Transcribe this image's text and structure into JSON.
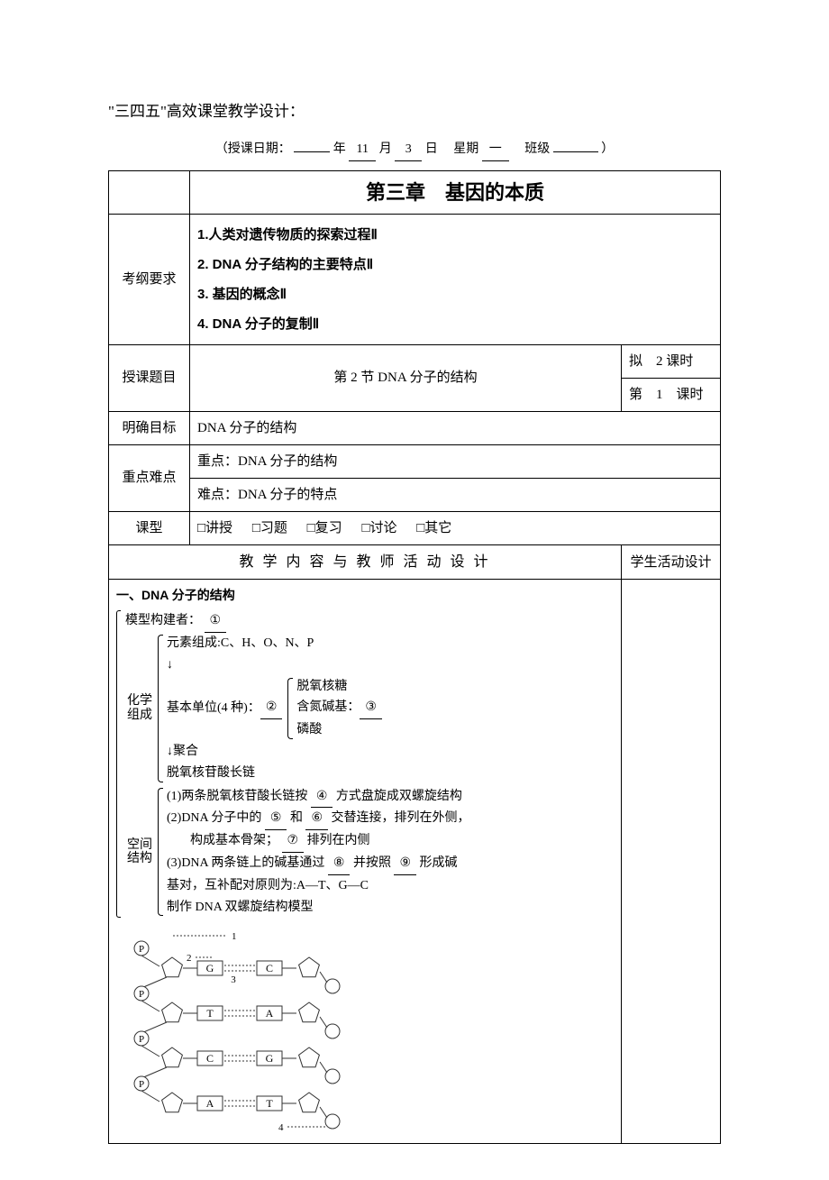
{
  "header": {
    "title": "\"三四五\"高效课堂教学设计：",
    "date_prefix": "（授课日期：",
    "year_blank": "",
    "year_suffix": "年",
    "month_value": "11",
    "month_suffix": "月",
    "day_value": "3",
    "day_suffix": "日",
    "weekday_label": "星期",
    "weekday_value": "一",
    "class_label": "班级",
    "class_value": "",
    "close": "）"
  },
  "chapter_title": "第三章　基因的本质",
  "rows": {
    "syllabus_label": "考纲要求",
    "syllabus_items": {
      "l1": "1.人类对遗传物质的探索过程Ⅱ",
      "l2": "2. DNA 分子结构的主要特点Ⅱ",
      "l3": "3. 基因的概念Ⅱ",
      "l4": "4. DNA 分子的复制Ⅱ"
    },
    "topic_label": "授课题目",
    "topic_value": "第 2 节 DNA 分子的结构",
    "plan_label": "拟　2 课时",
    "period_label": "第　1　课时",
    "goal_label": "明确目标",
    "goal_value": "DNA 分子的结构",
    "difficulty_label": "重点难点",
    "difficulty_key": "重点：DNA 分子的结构",
    "difficulty_hard": "难点：DNA 分子的特点",
    "type_label": "课型",
    "type_options": {
      "o1": "□讲授",
      "o2": "□习题",
      "o3": "□复习",
      "o4": "□讨论",
      "o5": "□其它"
    },
    "design_label": "教 学 内 容 与 教 师 活 动 设 计",
    "student_label": "学生活动设计"
  },
  "content": {
    "section_title": "一、DNA 分子的结构",
    "model_builder_label": "模型构建者：",
    "blank1": "①",
    "chem_label_l1": "化学",
    "chem_label_l2": "组成",
    "elements": "元素组成:C、H、O、N、P",
    "arrow_down": "↓",
    "basic_unit": "基本单位(4 种)：",
    "blank2": "②",
    "sugar": "脱氧核糖",
    "nbase_label": "含氮碱基：",
    "blank3": "③",
    "phosphate": "磷酸",
    "arrow_poly": "↓聚合",
    "long_chain": "脱氧核苷酸长链",
    "space_label_l1": "空间",
    "space_label_l2": "结构",
    "sp1a": "(1)两条脱氧核苷酸长链按",
    "blank4": "④",
    "sp1b": "方式盘旋成双螺旋结构",
    "sp2a": "(2)DNA 分子中的",
    "blank5": "⑤",
    "sp2and": "和",
    "blank6": "⑥",
    "sp2b": "交替连接，排列在外侧，",
    "sp2c": "构成基本骨架；",
    "blank7": "⑦",
    "sp2d": "排列在内侧",
    "sp3a": "(3)DNA 两条链上的碱基通过",
    "blank8": "⑧",
    "sp3b": "并按照",
    "blank9": "⑨",
    "sp3c": "形成碱",
    "sp3d": "基对，互补配对原则为:A—T、G—C",
    "build_model": "制作 DNA 双螺旋结构模型"
  },
  "diagram": {
    "labels": {
      "n1": "1",
      "n2": "2",
      "n3": "3",
      "n4": "4"
    },
    "pairs": [
      {
        "left": "G",
        "right": "C"
      },
      {
        "left": "T",
        "right": "A"
      },
      {
        "left": "C",
        "right": "G"
      },
      {
        "left": "A",
        "right": "T"
      }
    ],
    "colors": {
      "stroke": "#333333",
      "fill_pentagon": "#ffffff",
      "text": "#000000"
    }
  }
}
